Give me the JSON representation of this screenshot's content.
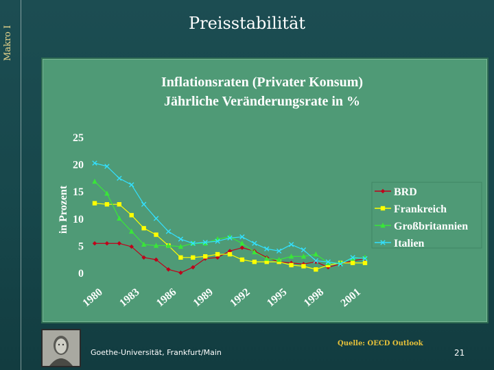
{
  "slide": {
    "side_label": "Makro I",
    "title": "Preisstabilität",
    "footer_left": "Goethe-Universität, Frankfurt/Main",
    "source": "Quelle: OECD Outlook",
    "page_number": "21"
  },
  "colors": {
    "background": "#1c4d52",
    "chart_bg": "#4f9a76",
    "plot_area_bg": "#4f9a76",
    "chart_text": "#ffffff",
    "accent_yellow": "#e8c23a",
    "series": [
      "#c0001a",
      "#ffff00",
      "#39e639",
      "#33e0ff"
    ]
  },
  "chart_data": {
    "type": "line",
    "title": "Inflationsraten (Privater Konsum)",
    "subtitle": "Jährliche Veränderungsrate in %",
    "xlabel": "",
    "ylabel": "in Prozent",
    "ylim": [
      0,
      25
    ],
    "yticks": [
      0,
      5,
      10,
      15,
      20,
      25
    ],
    "x": [
      1980,
      1981,
      1982,
      1983,
      1984,
      1985,
      1986,
      1987,
      1988,
      1989,
      1990,
      1991,
      1992,
      1993,
      1994,
      1995,
      1996,
      1997,
      1998,
      1999,
      2000,
      2001,
      2002
    ],
    "xticks": [
      1980,
      1983,
      1986,
      1989,
      1992,
      1995,
      1998,
      2001
    ],
    "legend_position": "right",
    "grid": false,
    "series": [
      {
        "name": "BRD",
        "marker": "diamond",
        "values": [
          5.4,
          5.4,
          5.4,
          4.8,
          2.8,
          2.4,
          0.6,
          0.0,
          1.0,
          2.6,
          2.8,
          4.0,
          4.6,
          4.0,
          2.8,
          2.0,
          1.8,
          1.6,
          2.0,
          1.0,
          1.6,
          2.2,
          2.6
        ]
      },
      {
        "name": "Frankreich",
        "marker": "square",
        "values": [
          12.8,
          12.6,
          12.6,
          10.6,
          8.2,
          7.0,
          5.0,
          2.8,
          2.8,
          3.0,
          3.4,
          3.4,
          2.4,
          2.0,
          2.0,
          2.0,
          1.4,
          1.2,
          0.6,
          1.4,
          1.8,
          1.8,
          1.8
        ]
      },
      {
        "name": "Großbritannien",
        "marker": "triangle",
        "values": [
          16.8,
          14.6,
          10.0,
          7.6,
          5.2,
          5.0,
          5.0,
          4.8,
          5.4,
          5.4,
          6.2,
          6.6,
          5.4,
          3.8,
          2.6,
          2.4,
          3.0,
          3.0,
          3.4,
          1.8,
          1.8,
          2.6,
          2.8
        ]
      },
      {
        "name": "Italien",
        "marker": "x",
        "values": [
          20.2,
          19.6,
          17.4,
          16.2,
          12.6,
          10.0,
          7.6,
          6.2,
          5.4,
          5.6,
          5.8,
          6.4,
          6.6,
          5.4,
          4.4,
          4.0,
          5.2,
          4.2,
          2.2,
          2.0,
          1.6,
          2.8,
          2.6
        ]
      }
    ]
  }
}
